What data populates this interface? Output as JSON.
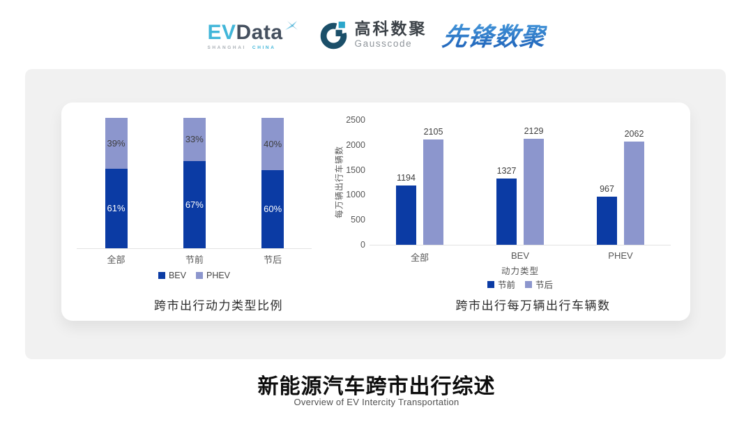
{
  "header": {
    "evdata": {
      "part1": "EV",
      "part2": "Data",
      "sub1": "SHANGHAI",
      "sub2": "CHINA",
      "icon": "x-star-icon"
    },
    "gausscode": {
      "name_cn": "高科数聚",
      "name_en": "Gausscode",
      "icon": "g-ring-icon"
    },
    "pioneer": {
      "name": "先锋数聚"
    }
  },
  "colors": {
    "series_dark_blue": "#0b3ba4",
    "series_light_blue": "#8c96cd",
    "panel_bg": "#f1f1f1",
    "evdata_cyan": "#41b6d9",
    "gauss_navy": "#1b4f69"
  },
  "chart_data": [
    {
      "type": "bar",
      "subtype": "stacked-percent",
      "title": "跨市出行动力类型比例",
      "categories": [
        "全部",
        "节前",
        "节后"
      ],
      "series": [
        {
          "name": "BEV",
          "color": "#0b3ba4",
          "values": [
            61,
            67,
            60
          ]
        },
        {
          "name": "PHEV",
          "color": "#8c96cd",
          "values": [
            39,
            33,
            40
          ]
        }
      ],
      "value_suffix": "%",
      "ylim": [
        0,
        100
      ],
      "grid": false,
      "legend_position": "bottom"
    },
    {
      "type": "bar",
      "subtype": "grouped",
      "title": "跨市出行每万辆出行车辆数",
      "categories": [
        "全部",
        "BEV",
        "PHEV"
      ],
      "xlabel": "动力类型",
      "ylabel": "每万辆出行车辆数",
      "ylim": [
        0,
        2500
      ],
      "yticks": [
        0,
        500,
        1000,
        1500,
        2000,
        2500
      ],
      "series": [
        {
          "name": "节前",
          "color": "#0b3ba4",
          "values": [
            1194,
            1327,
            967
          ]
        },
        {
          "name": "节后",
          "color": "#8c96cd",
          "values": [
            2105,
            2129,
            2062
          ]
        }
      ],
      "grid": false,
      "legend_position": "bottom"
    }
  ],
  "footer": {
    "title": "新能源汽车跨市出行综述",
    "subtitle": "Overview of EV Intercity Transportation"
  }
}
